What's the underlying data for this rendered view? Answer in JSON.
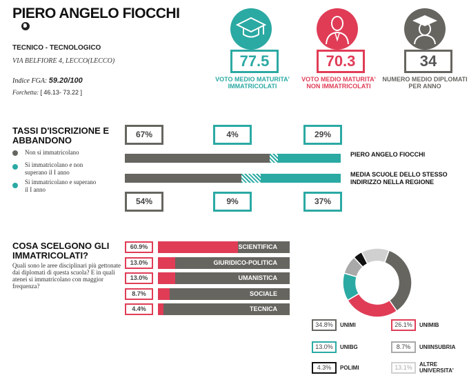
{
  "school": {
    "name": "PIERO ANGELO FIOCCHI",
    "type": "TECNICO - TECNOLOGICO",
    "address": "VIA BELFIORE 4, LECCO(LECCO)",
    "fga_label": "Indice FGA:",
    "fga_value": "59.20/100",
    "forchetta_label": "Forchetta:",
    "forchetta_value": "[ 46.13- 73.22 ]"
  },
  "stats": [
    {
      "value": "77.5",
      "label": "VOTO MEDIO MATURITA' IMMATRICOLATI",
      "color": "#2ba9a3",
      "icon": "graduation-cap-icon"
    },
    {
      "value": "70.3",
      "label": "VOTO MEDIO MATURITA' NON IMMATRICOLATI",
      "color": "#e03c56",
      "icon": "person-icon"
    },
    {
      "value": "34",
      "label": "NUMERO MEDIO DIPLOMATI PER ANNO",
      "color": "#666560",
      "icon": "graduate-person-icon"
    }
  ],
  "enrollment": {
    "title": "TASSI D'ISCRIZIONE E ABBANDONO",
    "legend": [
      {
        "label": "Non si immatricolano",
        "color": "#666560"
      },
      {
        "label": "Si immatricolano e non superano il I anno",
        "color": "#2ba9a3"
      },
      {
        "label": "Si immatricolano e superano il I anno",
        "color": "#2ba9a3"
      }
    ],
    "school_label": "PIERO ANGELO FIOCCHI",
    "region_label": "MEDIA SCUOLE DELLO STESSO INDIRIZZO NELLA REGIONE",
    "school_pcts": [
      "67%",
      "4%",
      "29%"
    ],
    "region_pcts": [
      "54%",
      "9%",
      "37%"
    ],
    "school_values": [
      67,
      4,
      29
    ],
    "region_values": [
      54,
      9,
      37
    ]
  },
  "choices": {
    "title": "COSA SCELGONO GLI IMMATRICOLATI?",
    "question": "Quali sono le aree disciplinari più gettonate dai diplomati di questa scuola? E in quali atenei si immatricolano con maggior frequenza?",
    "areas": [
      {
        "pct": "60.9%",
        "value": 60.9,
        "label": "SCIENTIFICA"
      },
      {
        "pct": "13.0%",
        "value": 13.0,
        "label": "GIURIDICO-POLITICA"
      },
      {
        "pct": "13.0%",
        "value": 13.0,
        "label": "UMANISTICA"
      },
      {
        "pct": "8.7%",
        "value": 8.7,
        "label": "SOCIALE"
      },
      {
        "pct": "4.4%",
        "value": 4.4,
        "label": "TECNICA"
      }
    ]
  },
  "chart_data": {
    "type": "pie",
    "title": "",
    "categories": [
      "UNIMI",
      "UNIMIB",
      "UNIBG",
      "UNIINSUBRIA",
      "POLIMI",
      "ALTRE UNIVERSITA'"
    ],
    "values": [
      34.8,
      26.1,
      13.0,
      8.7,
      4.3,
      13.1
    ],
    "labels": [
      "34.8%",
      "26.1%",
      "13.0%",
      "8.7%",
      "4.3%",
      "13.1%"
    ],
    "colors": [
      "#666560",
      "#e03c56",
      "#2ba9a3",
      "#a9a9a9",
      "#111111",
      "#d0d0d0"
    ]
  }
}
